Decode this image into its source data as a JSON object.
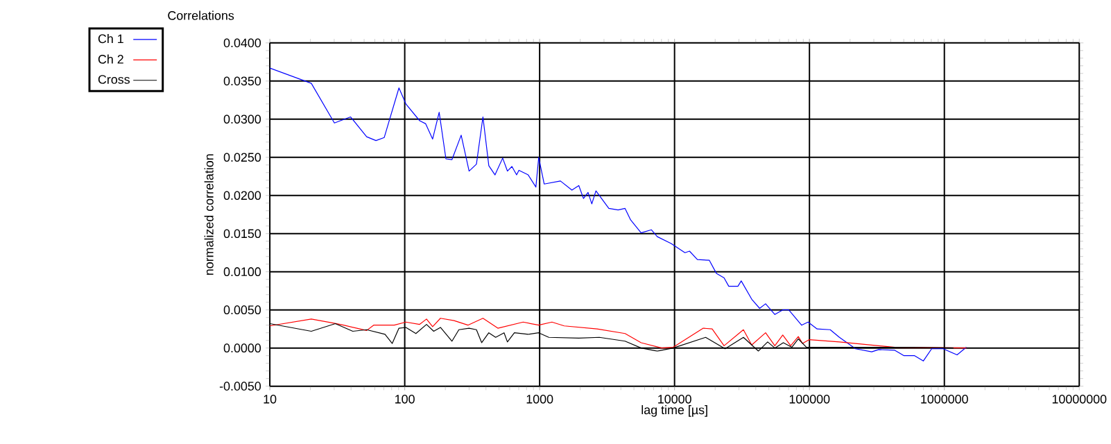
{
  "chart_data": {
    "type": "line",
    "title": "Correlations",
    "xlabel": "lag time [µs]",
    "ylabel": "normalized correlation",
    "log": "x",
    "grid": true,
    "legend": "top left",
    "marker": "none",
    "line_style": "solid",
    "xlim": [
      10,
      10000000
    ],
    "xticks": [
      10,
      100,
      1000,
      10000,
      100000,
      1000000,
      10000000
    ],
    "ylim": [
      -0.005,
      0.04
    ],
    "yticks": [
      {
        "value": -0.005,
        "label": "-0.0050"
      },
      {
        "value": 0,
        "label": "0.0000"
      },
      {
        "value": 0.005,
        "label": "0.0050"
      },
      {
        "value": 0.01,
        "label": "0.0100"
      },
      {
        "value": 0.015,
        "label": "0.0150"
      },
      {
        "value": 0.02,
        "label": "0.0200"
      },
      {
        "value": 0.025,
        "label": "0.0250"
      },
      {
        "value": 0.03,
        "label": "0.0300"
      },
      {
        "value": 0.035,
        "label": "0.0350"
      },
      {
        "value": 0.04,
        "label": "0.0400"
      }
    ],
    "series": [
      {
        "name": "Ch 1",
        "color": "#0000ff",
        "x": [
          10,
          20.3,
          30.1,
          39.7,
          52.2,
          61.2,
          70.5,
          90.6,
          102,
          129,
          143,
          161,
          180,
          202,
          224,
          262,
          300,
          340,
          380,
          420,
          467,
          532,
          577,
          623,
          675,
          702,
          822,
          938,
          984,
          1081,
          1426,
          1735,
          1952,
          2113,
          2285,
          2436,
          2614,
          3257,
          3817,
          4297,
          4723,
          5651,
          6730,
          7447,
          9430,
          11940,
          12910,
          14770,
          18110,
          20400,
          23280,
          25220,
          29510,
          31200,
          37330,
          42740,
          47300,
          55400,
          63400,
          70200,
          87400,
          97700,
          114000,
          142500,
          166800,
          219700,
          289500,
          326000,
          429500,
          502000,
          601700,
          698000,
          805000,
          981000,
          1242000,
          1455000
        ],
        "values": [
          0.0367,
          0.0347,
          0.0295,
          0.0303,
          0.0277,
          0.0272,
          0.0276,
          0.0341,
          0.032,
          0.0298,
          0.0294,
          0.0274,
          0.0309,
          0.0248,
          0.0247,
          0.0279,
          0.0232,
          0.0241,
          0.0303,
          0.0239,
          0.0227,
          0.0249,
          0.0232,
          0.0238,
          0.0227,
          0.0233,
          0.0227,
          0.0211,
          0.025,
          0.0215,
          0.0219,
          0.0207,
          0.0213,
          0.0196,
          0.0204,
          0.0189,
          0.0206,
          0.0183,
          0.0181,
          0.0183,
          0.0168,
          0.0151,
          0.0155,
          0.0146,
          0.0137,
          0.0125,
          0.0127,
          0.0116,
          0.0115,
          0.0098,
          0.0092,
          0.0081,
          0.0081,
          0.0088,
          0.0064,
          0.0052,
          0.0058,
          0.0044,
          0.005,
          0.005,
          0.003,
          0.0034,
          0.0025,
          0.0024,
          0.0014,
          -0.0001,
          -0.0005,
          -0.0002,
          -0.0003,
          -0.001,
          -0.001,
          -0.0017,
          -0.0001,
          -0.0001,
          -0.0009,
          0.0001
        ]
      },
      {
        "name": "Ch 2",
        "color": "#ff0000",
        "x": [
          10,
          20.3,
          29,
          35.2,
          52.2,
          58.8,
          83.7,
          102,
          129,
          145,
          161,
          184,
          232,
          294,
          380,
          490,
          755,
          984,
          1234,
          1521,
          2665,
          4297,
          5651,
          8040,
          9770,
          16330,
          19000,
          23280,
          32400,
          37330,
          47300,
          55400,
          63400,
          72600,
          82700,
          88800,
          99800,
          166800,
          429500,
          1455000
        ],
        "values": [
          0.0029,
          0.0038,
          0.0033,
          0.003,
          0.0023,
          0.003,
          0.003,
          0.0034,
          0.0031,
          0.0038,
          0.0028,
          0.0039,
          0.0036,
          0.003,
          0.0039,
          0.0026,
          0.0034,
          0.003,
          0.0034,
          0.0029,
          0.0025,
          0.0019,
          0.0007,
          0.0,
          0.0001,
          0.0026,
          0.0025,
          0.0003,
          0.0024,
          0.0004,
          0.002,
          0.0003,
          0.0017,
          0.0003,
          0.0015,
          0.0006,
          0.0011,
          0.0008,
          0.0001,
          0.0
        ]
      },
      {
        "name": "Cross",
        "color": "#000000",
        "x": [
          10,
          20.3,
          30.6,
          41.2,
          52.2,
          71.4,
          80.8,
          90.6,
          102,
          121,
          145,
          164,
          184,
          224,
          252,
          300,
          340,
          372,
          420,
          472,
          545,
          577,
          650,
          822,
          984,
          1170,
          1952,
          2770,
          4297,
          5651,
          7447,
          9770,
          17000,
          23700,
          32400,
          41800,
          49000,
          55400,
          64000,
          74000,
          82700,
          95000,
          166800,
          588000,
          1168000
        ],
        "values": [
          0.0032,
          0.0022,
          0.0032,
          0.0022,
          0.0024,
          0.0018,
          0.0006,
          0.0026,
          0.0027,
          0.0019,
          0.0031,
          0.0022,
          0.0027,
          0.0009,
          0.0024,
          0.0026,
          0.0024,
          0.0007,
          0.002,
          0.0014,
          0.002,
          0.0008,
          0.002,
          0.0018,
          0.002,
          0.0014,
          0.0013,
          0.0014,
          0.0009,
          0.0,
          -0.0004,
          0.0,
          0.0014,
          -0.0001,
          0.0014,
          -0.0004,
          0.0008,
          0.0,
          0.0007,
          0.0001,
          0.0012,
          0.0001,
          0.0001,
          0.0001,
          0.0
        ]
      }
    ]
  }
}
